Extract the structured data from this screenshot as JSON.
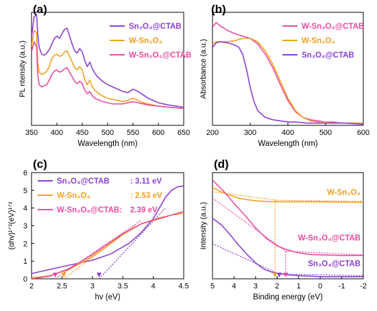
{
  "chart_data": [
    {
      "panel": "(a)",
      "type": "line",
      "xlabel": "Wavelength (nm)",
      "ylabel": "PL ntensity (a.u.)",
      "xlim": [
        350,
        650
      ],
      "ylim": [
        0,
        10
      ],
      "xticks": [
        "350",
        "400",
        "450",
        "500",
        "550",
        "600",
        "650"
      ],
      "yticks_shown": false,
      "grid": false,
      "legend_position": "top-right",
      "series": [
        {
          "name": "Sn₃O₄@CTAB",
          "color": "#8a3fd1",
          "x": [
            350,
            355,
            360,
            362,
            365,
            370,
            375,
            380,
            385,
            390,
            395,
            400,
            405,
            410,
            415,
            420,
            425,
            430,
            435,
            440,
            445,
            450,
            455,
            460,
            465,
            470,
            475,
            480,
            490,
            500,
            510,
            520,
            530,
            540,
            550,
            560,
            570,
            580,
            600,
            620,
            650
          ],
          "y": [
            7.8,
            9.6,
            9.8,
            8.2,
            6.9,
            6.3,
            6.2,
            6.4,
            6.7,
            7.2,
            7.7,
            7.9,
            7.7,
            8.1,
            8.5,
            8.6,
            7.9,
            7.2,
            6.6,
            6.4,
            6.8,
            6.5,
            5.7,
            5.2,
            5.6,
            5.0,
            4.6,
            4.3,
            3.9,
            3.6,
            3.4,
            3.2,
            3.0,
            2.9,
            3.2,
            3.0,
            2.7,
            2.4,
            2.0,
            1.8,
            1.6
          ]
        },
        {
          "name": "W-Sn₃O₄",
          "color": "#f0a020",
          "x": [
            350,
            355,
            360,
            362,
            365,
            370,
            375,
            380,
            385,
            390,
            395,
            400,
            405,
            410,
            415,
            420,
            425,
            430,
            435,
            440,
            445,
            450,
            455,
            460,
            465,
            470,
            475,
            480,
            490,
            500,
            510,
            520,
            530,
            540,
            550,
            560,
            570,
            580,
            600,
            620,
            650
          ],
          "y": [
            7.0,
            8.4,
            8.2,
            5.6,
            4.7,
            4.5,
            4.6,
            4.8,
            5.2,
            5.9,
            6.2,
            6.3,
            6.1,
            6.2,
            6.5,
            6.6,
            6.1,
            5.6,
            5.1,
            4.9,
            5.2,
            4.9,
            4.0,
            3.6,
            4.0,
            3.4,
            3.1,
            2.9,
            2.6,
            2.4,
            2.3,
            2.2,
            2.1,
            2.2,
            2.4,
            2.2,
            2.0,
            1.9,
            1.7,
            1.6,
            1.5
          ]
        },
        {
          "name": "W-Sn₃O₄@CTAB",
          "color": "#ea4aa0",
          "x": [
            350,
            355,
            360,
            362,
            365,
            370,
            375,
            380,
            385,
            390,
            395,
            400,
            405,
            410,
            415,
            420,
            425,
            430,
            435,
            440,
            445,
            450,
            455,
            460,
            465,
            470,
            475,
            480,
            490,
            500,
            510,
            520,
            530,
            540,
            550,
            560,
            570,
            580,
            600,
            620,
            650
          ],
          "y": [
            6.5,
            7.4,
            7.0,
            4.6,
            3.6,
            3.4,
            3.5,
            3.6,
            4.0,
            4.5,
            4.8,
            4.9,
            4.7,
            4.8,
            5.0,
            5.1,
            4.7,
            4.3,
            3.9,
            3.7,
            3.9,
            3.7,
            3.1,
            2.8,
            3.0,
            2.6,
            2.4,
            2.3,
            2.1,
            2.0,
            1.9,
            1.9,
            1.9,
            2.0,
            2.1,
            2.0,
            1.9,
            1.8,
            1.7,
            1.6,
            1.5
          ]
        }
      ]
    },
    {
      "panel": "(b)",
      "type": "line",
      "xlabel": "Wavelength (nm)",
      "ylabel": "Absorbance (a.u.)",
      "xlim": [
        200,
        600
      ],
      "ylim": [
        0,
        10
      ],
      "xticks": [
        "200",
        "300",
        "400",
        "500",
        "600"
      ],
      "yticks_shown": false,
      "grid": false,
      "legend_position": "top-right",
      "series": [
        {
          "name": "W-Sn₃O₄@CTAB",
          "color": "#ea4aa0",
          "x": [
            200,
            210,
            220,
            240,
            260,
            280,
            300,
            320,
            340,
            360,
            380,
            400,
            420,
            440,
            460,
            480,
            500,
            520,
            540,
            560,
            580,
            600
          ],
          "y": [
            8.7,
            9.1,
            8.8,
            8.4,
            8.1,
            7.9,
            7.7,
            7.2,
            6.3,
            5.1,
            3.6,
            2.2,
            1.2,
            0.7,
            0.5,
            0.4,
            0.3,
            0.3,
            0.2,
            0.2,
            0.2,
            0.2
          ]
        },
        {
          "name": "W-Sn₃O₄",
          "color": "#f0a020",
          "x": [
            200,
            210,
            220,
            240,
            260,
            280,
            300,
            320,
            340,
            360,
            380,
            400,
            420,
            440,
            460,
            480,
            500,
            520,
            540,
            560,
            580,
            600
          ],
          "y": [
            7.2,
            7.4,
            7.4,
            7.4,
            7.5,
            7.7,
            7.7,
            7.4,
            6.6,
            5.4,
            3.9,
            2.4,
            1.3,
            0.7,
            0.4,
            0.3,
            0.3,
            0.2,
            0.2,
            0.2,
            0.2,
            0.2
          ]
        },
        {
          "name": "Sn₃O₄@CTAB",
          "color": "#8a3fd1",
          "x": [
            200,
            210,
            220,
            240,
            260,
            270,
            280,
            290,
            300,
            310,
            320,
            340,
            360,
            380,
            400,
            420,
            450,
            500,
            550,
            600
          ],
          "y": [
            6.9,
            7.3,
            7.4,
            7.3,
            7.1,
            6.9,
            6.3,
            5.0,
            3.4,
            2.1,
            1.3,
            0.7,
            0.5,
            0.4,
            0.3,
            0.3,
            0.2,
            0.2,
            0.2,
            0.1
          ]
        }
      ]
    },
    {
      "panel": "(c)",
      "type": "line",
      "xlabel": "hv (eV)",
      "ylabel": "(αhv)¹ᐟ²(eV)¹ᐟ²",
      "xlim": [
        2,
        4.5
      ],
      "ylim": [
        0,
        6
      ],
      "xticks": [
        "2",
        "2.5",
        "3",
        "3.5",
        "4",
        "4.5"
      ],
      "yticks": [
        "0",
        "1",
        "2",
        "3",
        "4",
        "5",
        "6"
      ],
      "grid": false,
      "legend_position": "top-left",
      "series": [
        {
          "name": "Sn₃O₄@CTAB",
          "label_value": ": 3.11 eV",
          "color": "#8a3fd1",
          "x": [
            2.0,
            2.5,
            3.0,
            3.3,
            3.6,
            3.8,
            4.0,
            4.1,
            4.2,
            4.3,
            4.4,
            4.5
          ],
          "y": [
            0.3,
            0.68,
            1.05,
            1.4,
            2.0,
            2.6,
            3.4,
            4.0,
            4.6,
            5.0,
            5.2,
            5.25
          ],
          "tangent": {
            "x": [
              3.11,
              4.2
            ],
            "y": [
              0,
              4.0
            ]
          },
          "bandgap": 3.11
        },
        {
          "name": "W-Sn₃O₄",
          "label_value": ": 2.53 eV",
          "color": "#f0a020",
          "x": [
            2.0,
            2.3,
            2.6,
            2.9,
            3.2,
            3.5,
            3.8,
            4.1,
            4.3,
            4.5
          ],
          "y": [
            0.05,
            0.18,
            0.5,
            1.05,
            1.75,
            2.5,
            3.1,
            3.45,
            3.6,
            3.7
          ],
          "tangent": {
            "x": [
              2.53,
              3.7
            ],
            "y": [
              0,
              3.0
            ]
          },
          "bandgap": 2.53
        },
        {
          "name": "W-Sn₃O₄@CTAB:",
          "label_value": " 2.39 eV",
          "color": "#ea4aa0",
          "x": [
            2.0,
            2.3,
            2.6,
            2.9,
            3.2,
            3.5,
            3.8,
            4.1,
            4.3,
            4.5
          ],
          "y": [
            0.0,
            0.15,
            0.55,
            1.15,
            1.85,
            2.55,
            3.1,
            3.4,
            3.6,
            3.8
          ],
          "tangent": {
            "x": [
              2.39,
              3.8
            ],
            "y": [
              0,
              3.3
            ]
          },
          "bandgap": 2.39
        }
      ]
    },
    {
      "panel": "(d)",
      "type": "line",
      "xlabel": "Binding energy (eV)",
      "ylabel": "Intensity (a.u.)",
      "xlim": [
        5,
        -2
      ],
      "ylim": [
        0,
        10
      ],
      "xticks": [
        "5",
        "4",
        "3",
        "2",
        "1",
        "0",
        "-1",
        "-2"
      ],
      "yticks_shown": false,
      "grid": false,
      "series": [
        {
          "name": "W-Sn₃O₄",
          "color": "#f0a020",
          "x": [
            5,
            4.6,
            4.2,
            3.8,
            3.4,
            3.0,
            2.6,
            2.2,
            2.0,
            1.0,
            0,
            -1,
            -2
          ],
          "y": [
            8.6,
            8.2,
            7.9,
            7.6,
            7.45,
            7.35,
            7.3,
            7.25,
            7.25,
            7.25,
            7.25,
            7.22,
            7.2
          ],
          "tangent_points": [
            [
              5,
              8.2
            ],
            [
              2.0,
              7.4
            ]
          ],
          "baseline_points": [
            [
              2.1,
              7.4
            ],
            [
              -2,
              7.3
            ]
          ],
          "vbm": 2.1
        },
        {
          "name": "W-Sn₃O₄@CTAB",
          "color": "#ea4aa0",
          "x": [
            5,
            4.5,
            4.0,
            3.5,
            3.0,
            2.5,
            2.0,
            1.5,
            1.0,
            0.5,
            0,
            -1,
            -2
          ],
          "y": [
            9.3,
            8.3,
            7.1,
            6.0,
            4.8,
            3.8,
            3.1,
            2.7,
            2.45,
            2.3,
            2.25,
            2.2,
            2.2
          ],
          "tangent_points": [
            [
              5,
              7.6
            ],
            [
              1.6,
              2.6
            ]
          ],
          "baseline_points": [
            [
              1.6,
              2.6
            ],
            [
              -2,
              2.25
            ]
          ],
          "vbm": 1.6
        },
        {
          "name": "Sn₃O₄@CTAB",
          "color": "#8a3fd1",
          "x": [
            5,
            4.6,
            4.2,
            3.8,
            3.4,
            3.0,
            2.6,
            2.2,
            1.8,
            1.4,
            1.0,
            0.5,
            0,
            -1,
            -2
          ],
          "y": [
            5.7,
            5.1,
            4.2,
            3.2,
            2.3,
            1.5,
            0.9,
            0.6,
            0.45,
            0.35,
            0.3,
            0.25,
            0.2,
            0.2,
            0.2
          ],
          "tangent_points": [
            [
              5,
              3.3
            ],
            [
              1.9,
              0.45
            ]
          ],
          "baseline_points": [
            [
              1.9,
              0.45
            ],
            [
              -2,
              0.3
            ]
          ],
          "vbm": 1.9
        }
      ]
    }
  ]
}
